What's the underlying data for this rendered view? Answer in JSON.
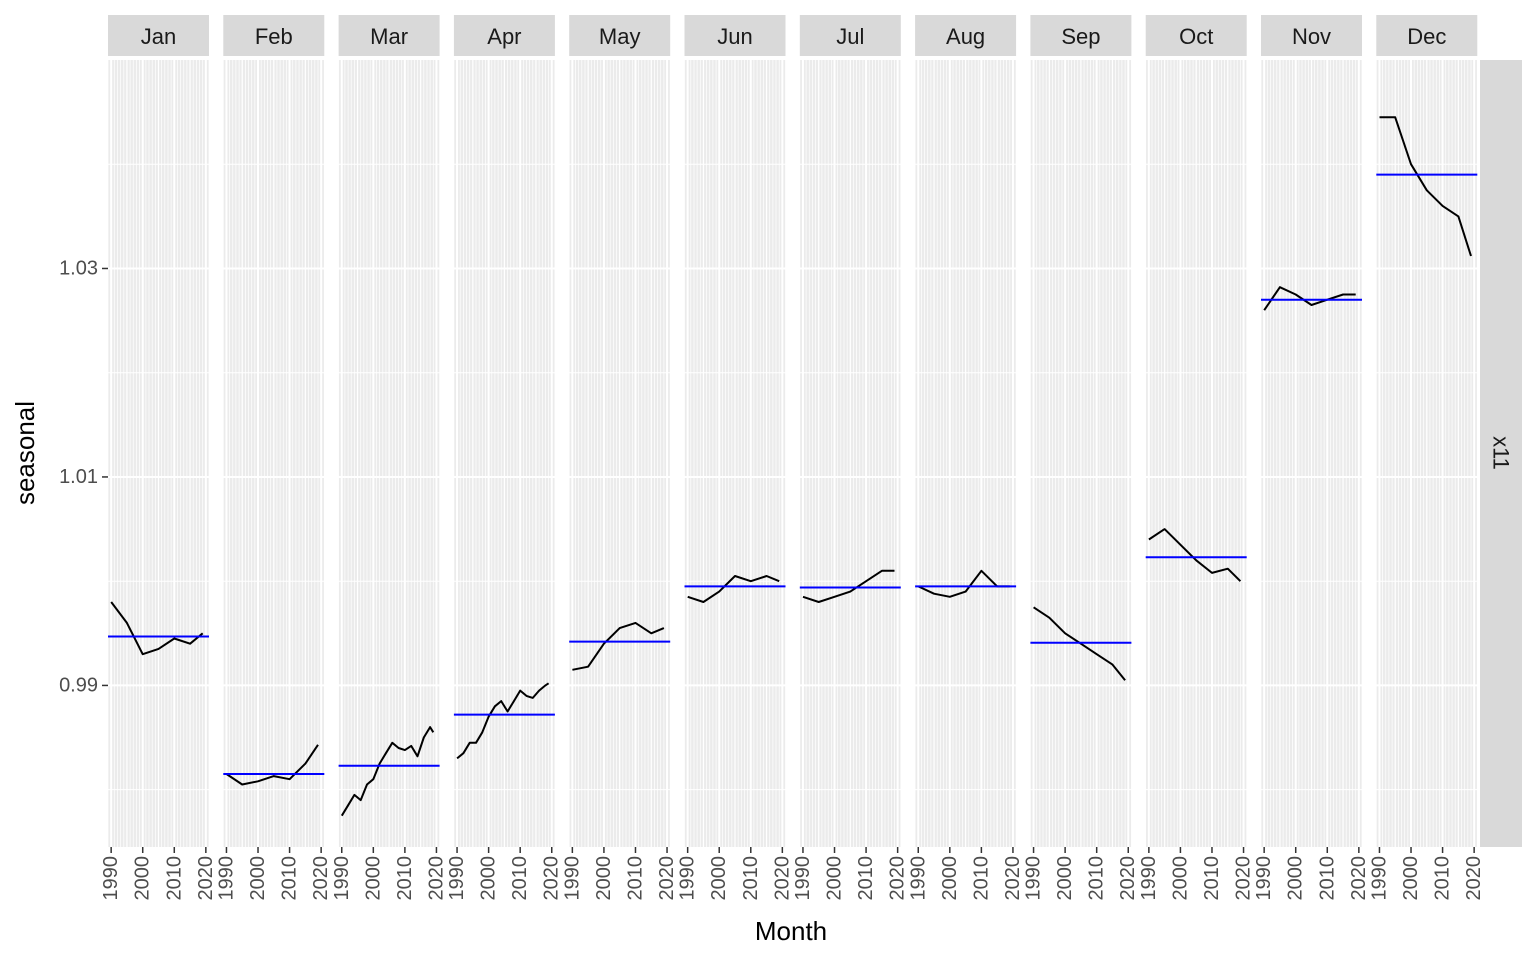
{
  "chart_data": {
    "type": "line",
    "xlabel": "Month",
    "ylabel": "seasonal",
    "facet_row_label": "x11",
    "panels": [
      "Jan",
      "Feb",
      "Mar",
      "Apr",
      "May",
      "Jun",
      "Jul",
      "Aug",
      "Sep",
      "Oct",
      "Nov",
      "Dec"
    ],
    "x_ticks": [
      1990,
      2000,
      2010,
      2020
    ],
    "x_range": [
      1989,
      2021
    ],
    "y_ticks": [
      0.99,
      1.01,
      1.03
    ],
    "y_tick_labels": [
      "0.99",
      "1.01",
      "1.03"
    ],
    "ylim": [
      0.9745,
      1.05
    ],
    "grid": true,
    "colors": {
      "series": "#000000",
      "mean": "#0000ff",
      "panel_bg": "#ebebeb",
      "strip_bg": "#d9d9d9",
      "grid": "#ffffff"
    },
    "series": [
      {
        "panel": "Jan",
        "years": [
          1990,
          1995,
          2000,
          2005,
          2010,
          2015,
          2019
        ],
        "values": [
          0.998,
          0.996,
          0.993,
          0.9935,
          0.9945,
          0.994,
          0.995
        ],
        "mean": 0.9947
      },
      {
        "panel": "Feb",
        "years": [
          1990,
          1995,
          2000,
          2005,
          2010,
          2015,
          2019
        ],
        "values": [
          0.9815,
          0.9805,
          0.9808,
          0.9813,
          0.981,
          0.9825,
          0.9843
        ],
        "mean": 0.9815
      },
      {
        "panel": "Mar",
        "years": [
          1990,
          1992,
          1994,
          1996,
          1998,
          2000,
          2002,
          2004,
          2006,
          2008,
          2010,
          2012,
          2014,
          2016,
          2018,
          2019
        ],
        "values": [
          0.9775,
          0.9785,
          0.9795,
          0.979,
          0.9805,
          0.981,
          0.9825,
          0.9835,
          0.9845,
          0.984,
          0.9838,
          0.9842,
          0.9832,
          0.985,
          0.986,
          0.9855
        ],
        "mean": 0.9823
      },
      {
        "panel": "Apr",
        "years": [
          1990,
          1992,
          1994,
          1996,
          1998,
          2000,
          2002,
          2004,
          2006,
          2008,
          2010,
          2012,
          2014,
          2016,
          2018,
          2019
        ],
        "values": [
          0.983,
          0.9835,
          0.9845,
          0.9845,
          0.9855,
          0.987,
          0.988,
          0.9885,
          0.9875,
          0.9885,
          0.9895,
          0.989,
          0.9888,
          0.9895,
          0.99,
          0.9902
        ],
        "mean": 0.9872
      },
      {
        "panel": "May",
        "years": [
          1990,
          1995,
          2000,
          2005,
          2010,
          2015,
          2019
        ],
        "values": [
          0.9915,
          0.9918,
          0.994,
          0.9955,
          0.996,
          0.995,
          0.9955
        ],
        "mean": 0.9942
      },
      {
        "panel": "Jun",
        "years": [
          1990,
          1995,
          2000,
          2005,
          2010,
          2015,
          2019
        ],
        "values": [
          0.9985,
          0.998,
          0.999,
          1.0005,
          1.0,
          1.0005,
          1.0
        ],
        "mean": 0.9995
      },
      {
        "panel": "Jul",
        "years": [
          1990,
          1995,
          2000,
          2005,
          2010,
          2015,
          2019
        ],
        "values": [
          0.9985,
          0.998,
          0.9985,
          0.999,
          1.0,
          1.001,
          1.001
        ],
        "mean": 0.9994
      },
      {
        "panel": "Aug",
        "years": [
          1990,
          1995,
          2000,
          2005,
          2010,
          2015,
          2019
        ],
        "values": [
          0.9995,
          0.9988,
          0.9985,
          0.999,
          1.001,
          0.9995,
          0.9995
        ],
        "mean": 0.9995
      },
      {
        "panel": "Sep",
        "years": [
          1990,
          1995,
          2000,
          2005,
          2010,
          2015,
          2019
        ],
        "values": [
          0.9975,
          0.9965,
          0.995,
          0.994,
          0.993,
          0.992,
          0.9905
        ],
        "mean": 0.9941
      },
      {
        "panel": "Oct",
        "years": [
          1990,
          1995,
          2000,
          2005,
          2010,
          2015,
          2019
        ],
        "values": [
          1.004,
          1.005,
          1.0035,
          1.002,
          1.0008,
          1.0012,
          1.0
        ],
        "mean": 1.0023
      },
      {
        "panel": "Nov",
        "years": [
          1990,
          1995,
          2000,
          2005,
          2010,
          2015,
          2019
        ],
        "values": [
          1.026,
          1.0282,
          1.0275,
          1.0265,
          1.027,
          1.0275,
          1.0275
        ],
        "mean": 1.027
      },
      {
        "panel": "Dec",
        "years": [
          1990,
          1995,
          2000,
          2005,
          2010,
          2015,
          2019
        ],
        "values": [
          1.0445,
          1.0445,
          1.04,
          1.0375,
          1.036,
          1.035,
          1.0312
        ],
        "mean": 1.039
      }
    ]
  }
}
